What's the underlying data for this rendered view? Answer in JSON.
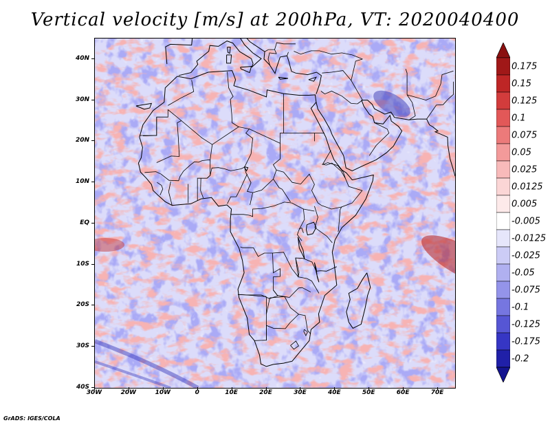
{
  "title": "Vertical velocity [m/s] at 200hPa, VT: 2020040400",
  "credit": "GrADS: IGES/COLA",
  "map": {
    "region": "Africa",
    "projection": "lat-lon",
    "lon_range": [
      -30,
      75
    ],
    "lat_range": [
      -40,
      45
    ],
    "lat_labels": [
      {
        "lat": 40,
        "text": "40N"
      },
      {
        "lat": 30,
        "text": "30N"
      },
      {
        "lat": 20,
        "text": "20N"
      },
      {
        "lat": 10,
        "text": "10N"
      },
      {
        "lat": 0,
        "text": "EQ"
      },
      {
        "lat": -10,
        "text": "10S"
      },
      {
        "lat": -20,
        "text": "20S"
      },
      {
        "lat": -30,
        "text": "30S"
      },
      {
        "lat": -40,
        "text": "40S"
      }
    ],
    "lon_labels": [
      {
        "lon": -30,
        "text": "30W"
      },
      {
        "lon": -20,
        "text": "20W"
      },
      {
        "lon": -10,
        "text": "10W"
      },
      {
        "lon": 0,
        "text": "0"
      },
      {
        "lon": 10,
        "text": "10E"
      },
      {
        "lon": 20,
        "text": "20E"
      },
      {
        "lon": 30,
        "text": "30E"
      },
      {
        "lon": 40,
        "text": "40E"
      },
      {
        "lon": 50,
        "text": "50E"
      },
      {
        "lon": 60,
        "text": "60E"
      },
      {
        "lon": 70,
        "text": "70E"
      }
    ]
  },
  "colorbar": {
    "levels": [
      {
        "label": "0.175",
        "color": "#a01818"
      },
      {
        "label": "0.15",
        "color": "#be2626"
      },
      {
        "label": "0.125",
        "color": "#d23c3c"
      },
      {
        "label": "0.1",
        "color": "#e25858"
      },
      {
        "label": "0.075",
        "color": "#ec7a7a"
      },
      {
        "label": "0.05",
        "color": "#f39a9a"
      },
      {
        "label": "0.025",
        "color": "#f8baba"
      },
      {
        "label": "0.0125",
        "color": "#fbd6d6"
      },
      {
        "label": "0.005",
        "color": "#fdeaea"
      },
      {
        "label": "-0.005",
        "color": "#ffffff"
      },
      {
        "label": "-0.0125",
        "color": "#e6e6fb"
      },
      {
        "label": "-0.025",
        "color": "#ccccf6"
      },
      {
        "label": "-0.05",
        "color": "#b0b0f0"
      },
      {
        "label": "-0.075",
        "color": "#9494ea"
      },
      {
        "label": "-0.1",
        "color": "#7676e0"
      },
      {
        "label": "-0.125",
        "color": "#5656d4"
      },
      {
        "label": "-0.175",
        "color": "#3636c4"
      },
      {
        "label": "-0.2",
        "color": "#2020a8"
      }
    ],
    "top_arrow_color": "#8a1010",
    "bottom_arrow_color": "#141490"
  }
}
